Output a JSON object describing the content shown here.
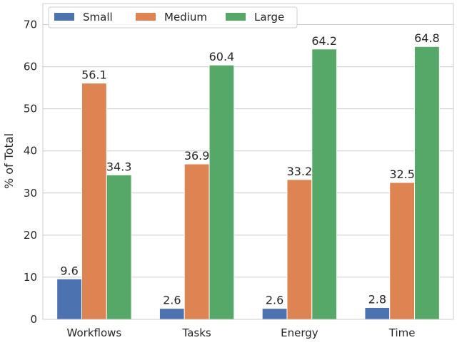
{
  "chart_data": {
    "type": "bar",
    "title": "",
    "xlabel": "",
    "ylabel": "% of Total",
    "categories": [
      "Workflows",
      "Tasks",
      "Energy",
      "Time"
    ],
    "series": [
      {
        "name": "Small",
        "color": "#4c72b0",
        "values": [
          9.6,
          2.6,
          2.6,
          2.8
        ]
      },
      {
        "name": "Medium",
        "color": "#dd8452",
        "values": [
          56.1,
          36.9,
          33.2,
          32.5
        ]
      },
      {
        "name": "Large",
        "color": "#55a868",
        "values": [
          34.3,
          60.4,
          64.2,
          64.8
        ]
      }
    ],
    "ylim": [
      0,
      75
    ],
    "yticks": [
      0,
      10,
      20,
      30,
      40,
      50,
      60,
      70
    ],
    "grid": true,
    "legend_position": "top-left",
    "data_labels": true
  }
}
